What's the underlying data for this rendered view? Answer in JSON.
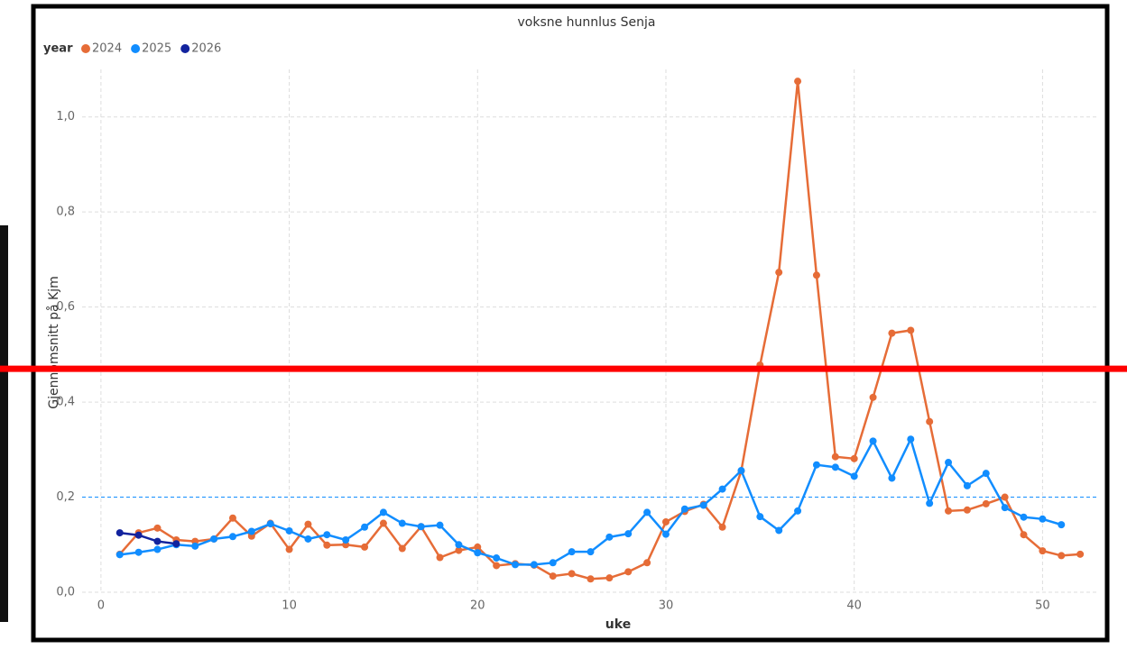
{
  "chart_data": {
    "type": "line",
    "title": "voksne hunnlus Senja",
    "x_label": "uke",
    "y_label": "Gjennomsnitt på Kjm",
    "legend_title": "year",
    "legend_position": "top-left",
    "x": [
      1,
      2,
      3,
      4,
      5,
      6,
      7,
      8,
      9,
      10,
      11,
      12,
      13,
      14,
      15,
      16,
      17,
      18,
      19,
      20,
      21,
      22,
      23,
      24,
      25,
      26,
      27,
      28,
      29,
      30,
      31,
      32,
      33,
      34,
      35,
      36,
      37,
      38,
      39,
      40,
      41,
      42,
      43,
      44,
      45,
      46,
      47,
      48,
      49,
      50,
      51,
      52
    ],
    "series": [
      {
        "name": "2024",
        "color": "#E66C37",
        "values": [
          0.08,
          0.125,
          0.135,
          0.11,
          0.107,
          0.112,
          0.156,
          0.118,
          0.145,
          0.09,
          0.143,
          0.099,
          0.1,
          0.095,
          0.145,
          0.092,
          0.138,
          0.073,
          0.088,
          0.095,
          0.056,
          0.06,
          0.057,
          0.034,
          0.039,
          0.028,
          0.03,
          0.043,
          0.062,
          0.148,
          0.17,
          0.185,
          0.137,
          0.255,
          0.478,
          0.673,
          1.075,
          0.667,
          0.285,
          0.281,
          0.41,
          0.545,
          0.551,
          0.359,
          0.171,
          0.173,
          0.186,
          0.2,
          0.121,
          0.087,
          0.077,
          0.08
        ]
      },
      {
        "name": "2025",
        "color": "#118DFF",
        "values": [
          0.079,
          0.084,
          0.09,
          0.1,
          0.097,
          0.112,
          0.117,
          0.128,
          0.144,
          0.129,
          0.112,
          0.121,
          0.11,
          0.137,
          0.168,
          0.145,
          0.138,
          0.141,
          0.1,
          0.083,
          0.072,
          0.058,
          0.058,
          0.062,
          0.085,
          0.085,
          0.116,
          0.123,
          0.168,
          0.122,
          0.175,
          0.183,
          0.217,
          0.256,
          0.159,
          0.13,
          0.171,
          0.268,
          0.263,
          0.244,
          0.318,
          0.24,
          0.322,
          0.187,
          0.273,
          0.224,
          0.25,
          0.178,
          0.158,
          0.154,
          0.142,
          null
        ]
      },
      {
        "name": "2026",
        "color": "#12239E",
        "values": [
          0.125,
          0.12,
          0.107,
          0.102,
          null,
          null,
          null,
          null,
          null,
          null,
          null,
          null,
          null,
          null,
          null,
          null,
          null,
          null,
          null,
          null,
          null,
          null,
          null,
          null,
          null,
          null,
          null,
          null,
          null,
          null,
          null,
          null,
          null,
          null,
          null,
          null,
          null,
          null,
          null,
          null,
          null,
          null,
          null,
          null,
          null,
          null,
          null,
          null,
          null,
          null,
          null,
          null
        ]
      }
    ],
    "xlim": [
      -1,
      53
    ],
    "xticks": [
      0,
      10,
      20,
      30,
      40,
      50
    ],
    "ylim": [
      0,
      1.1
    ],
    "yticks": [
      {
        "value": 0,
        "label": "0,0"
      },
      {
        "value": 0.2,
        "label": "0,2"
      },
      {
        "value": 0.4,
        "label": "0,4"
      },
      {
        "value": 0.6,
        "label": "0,6"
      },
      {
        "value": 0.8,
        "label": "0,8"
      },
      {
        "value": 1,
        "label": "1,0"
      }
    ],
    "grid": true,
    "reference_line": {
      "value": 0.2,
      "color": "#118DFF"
    },
    "highlight_line": {
      "value": 0.47,
      "color": "#FF0000"
    }
  }
}
